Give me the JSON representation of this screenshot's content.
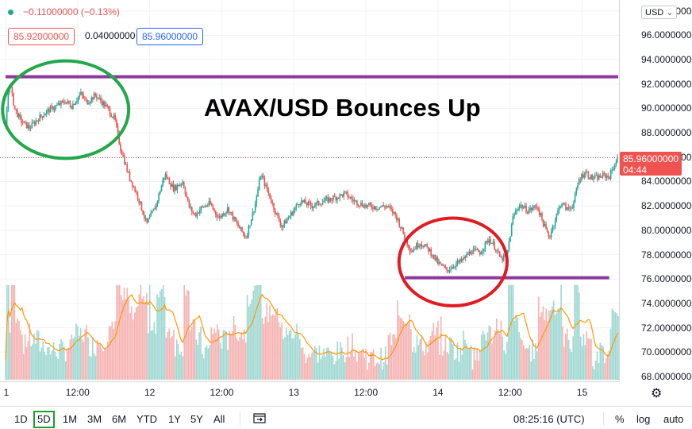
{
  "chart_data": {
    "type": "candlestick",
    "title": "AVAX/USD Bounces Up",
    "symbol": "AVAX/USD",
    "ylim": [
      67.6,
      98.9
    ],
    "yticks": [
      "98.00000000",
      "96.00000000",
      "94.00000000",
      "92.00000000",
      "90.00000000",
      "88.00000000",
      "86.00000000",
      "84.00000000",
      "82.00000000",
      "80.00000000",
      "78.00000000",
      "76.00000000",
      "74.00000000",
      "72.00000000",
      "70.00000000",
      "68.00000000"
    ],
    "ytick_values": [
      98,
      96,
      94,
      92,
      90,
      88,
      86,
      84,
      82,
      80,
      78,
      76,
      74,
      72,
      70,
      68
    ],
    "xticks": [
      {
        "label": "1",
        "hour": 0
      },
      {
        "label": "12:00",
        "hour": 12
      },
      {
        "label": "12",
        "hour": 24
      },
      {
        "label": "12:00",
        "hour": 36
      },
      {
        "label": "13",
        "hour": 48
      },
      {
        "label": "12:00",
        "hour": 60
      },
      {
        "label": "14",
        "hour": 72
      },
      {
        "label": "12:00",
        "hour": 84
      },
      {
        "label": "15",
        "hour": 96
      }
    ],
    "price_path": [
      [
        0,
        88.5
      ],
      [
        0.6,
        92.3
      ],
      [
        1.5,
        90.0
      ],
      [
        2.5,
        89.0
      ],
      [
        4,
        88.4
      ],
      [
        5.5,
        89.2
      ],
      [
        7,
        89.8
      ],
      [
        8.5,
        90.2
      ],
      [
        10,
        90.6
      ],
      [
        11,
        90.2
      ],
      [
        12.5,
        91.2
      ],
      [
        13.5,
        90.5
      ],
      [
        15,
        91.1
      ],
      [
        17,
        90.0
      ],
      [
        18.2,
        89.1
      ],
      [
        19,
        87.0
      ],
      [
        20.5,
        84.5
      ],
      [
        22,
        82.8
      ],
      [
        23.5,
        80.5
      ],
      [
        25,
        82.0
      ],
      [
        26.5,
        84.6
      ],
      [
        28,
        83.4
      ],
      [
        29.5,
        84.0
      ],
      [
        30.5,
        82.0
      ],
      [
        31.5,
        81.2
      ],
      [
        32.5,
        81.8
      ],
      [
        34,
        82.2
      ],
      [
        35.5,
        81.0
      ],
      [
        37,
        81.8
      ],
      [
        38.5,
        80.5
      ],
      [
        40,
        79.4
      ],
      [
        41.5,
        82.0
      ],
      [
        42.5,
        84.6
      ],
      [
        43.8,
        83.0
      ],
      [
        45,
        81.4
      ],
      [
        46,
        80.3
      ],
      [
        47.5,
        81.3
      ],
      [
        49,
        82.4
      ],
      [
        51,
        82.0
      ],
      [
        53,
        82.4
      ],
      [
        55,
        82.7
      ],
      [
        56.5,
        83.0
      ],
      [
        58,
        82.4
      ],
      [
        60,
        82.0
      ],
      [
        62,
        81.9
      ],
      [
        63.5,
        82.0
      ],
      [
        65,
        81.2
      ],
      [
        66.5,
        79.4
      ],
      [
        67.5,
        78.3
      ],
      [
        69,
        79.0
      ],
      [
        70.5,
        78.4
      ],
      [
        72,
        77.3
      ],
      [
        73.5,
        76.7
      ],
      [
        74.5,
        77.1
      ],
      [
        76,
        77.5
      ],
      [
        77.5,
        78.3
      ],
      [
        79,
        78.2
      ],
      [
        80.5,
        79.3
      ],
      [
        81.5,
        78.6
      ],
      [
        82.5,
        77.6
      ],
      [
        83.5,
        78.0
      ],
      [
        84.5,
        81.1
      ],
      [
        85.5,
        82.1
      ],
      [
        87,
        81.6
      ],
      [
        88.5,
        82.0
      ],
      [
        89.5,
        80.6
      ],
      [
        90.5,
        79.4
      ],
      [
        91.5,
        80.9
      ],
      [
        92.5,
        82.3
      ],
      [
        93.5,
        81.7
      ],
      [
        94.5,
        82.1
      ],
      [
        95.5,
        84.2
      ],
      [
        96.5,
        84.8
      ],
      [
        97.5,
        84.3
      ],
      [
        98.5,
        84.3
      ],
      [
        99.5,
        84.5
      ],
      [
        100.5,
        84.4
      ],
      [
        101.2,
        85.2
      ],
      [
        102,
        86.0
      ]
    ],
    "x_range_hours": [
      0,
      102
    ],
    "last_price": "85.96000000",
    "countdown": "04:44",
    "resistance_line": 92.6,
    "support_line": {
      "y": 76.1,
      "from_hour": 66.5,
      "to_hour": 100.5
    },
    "annotations": [
      {
        "shape": "ellipse",
        "color": "#22a84a",
        "center_hour": 10,
        "center_y": 89.9,
        "rx_hours": 10.5,
        "ry": 4.0
      },
      {
        "shape": "ellipse",
        "color": "#e01b22",
        "center_hour": 74.5,
        "center_y": 77.4,
        "rx_hours": 9.0,
        "ry": 3.6
      }
    ]
  },
  "legend": {
    "change": "−0.11000000 (−0.13%)",
    "bid": "85.92000000",
    "spread": "0.04000000",
    "ask": "85.96000000"
  },
  "colors": {
    "up": "#26a69a",
    "down": "#ef5350",
    "level": "#8e3a9c",
    "volume_ma": "#ff9800",
    "bid": "#ef5350",
    "ask": "#2962ff"
  },
  "currency": "USD",
  "toolbar": {
    "ranges": [
      "1D",
      "5D",
      "1M",
      "3M",
      "6M",
      "YTD",
      "1Y",
      "5Y",
      "All"
    ],
    "active_range": "5D",
    "time": "08:25:16 (UTC)",
    "percent": "%",
    "log": "log",
    "auto": "auto"
  }
}
